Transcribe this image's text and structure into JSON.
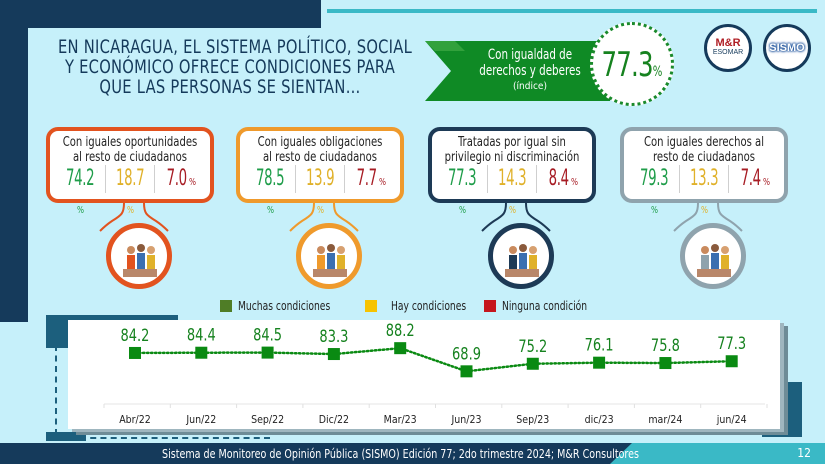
{
  "title": {
    "lines": [
      "EN NICARAGUA, EL SISTEMA POLÍTICO, SOCIAL",
      "Y ECONÓMICO OFRECE CONDICIONES PARA",
      "QUE LAS PERSONAS SE SIENTAN…"
    ]
  },
  "index": {
    "label_line1": "Con igualdad de",
    "label_line2": "derechos y deberes",
    "label_line3": "(índice)",
    "value": "77.3",
    "unit": "%"
  },
  "logos": {
    "mr_text": "M&R",
    "mr_sub": "ESOMAR",
    "sismo_text": "SISMO"
  },
  "colors": {
    "green": "#1f9d4a",
    "yellow": "#e0b12a",
    "red": "#a71c24",
    "navy": "#153a5b",
    "teal": "#3ab9c6"
  },
  "cards": [
    {
      "line1": "Con iguales oportunidades",
      "line2": "al resto de ciudadanos",
      "muchas": "74.2",
      "hay": "18.7",
      "ninguna": "7.0",
      "unit": "%",
      "border": "#e2531f",
      "icon": "people-on-podiums-icon"
    },
    {
      "line1": "Con iguales obligaciones",
      "line2": "al resto de ciudadanos",
      "muchas": "78.5",
      "hay": "13.9",
      "ninguna": "7.7",
      "unit": "%",
      "border": "#ef9a2c",
      "icon": "balance-scale-icon"
    },
    {
      "line1": "Tratadas por igual sin",
      "line2": "privilegio ni discriminación",
      "muchas": "77.3",
      "hay": "14.3",
      "ninguna": "8.4",
      "unit": "%",
      "border": "#1d3a56",
      "icon": "diverse-crowd-icon"
    },
    {
      "line1": "Con iguales derechos al",
      "line2": "resto de ciudadanos",
      "muchas": "79.3",
      "hay": "13.3",
      "ninguna": "7.4",
      "unit": "%",
      "border": "#8fa3ad",
      "icon": "helping-climb-icon"
    }
  ],
  "legend": [
    {
      "label": "Muchas condiciones",
      "color": "#4f7d26"
    },
    {
      "label": "Hay condiciones",
      "color": "#f7c300"
    },
    {
      "label": "Ninguna condición",
      "color": "#c5161d"
    }
  ],
  "chart_data": {
    "type": "line",
    "title": "",
    "xlabel": "",
    "ylabel": "",
    "categories": [
      "Abr/22",
      "Jun/22",
      "Sep/22",
      "Dic/22",
      "Mar/23",
      "Jun/23",
      "Sep/23",
      "dic/23",
      "mar/24",
      "jun/24"
    ],
    "series": [
      {
        "name": "Con igualdad de derechos y deberes (índice)",
        "values": [
          84.2,
          84.4,
          84.5,
          83.3,
          88.2,
          68.9,
          75.2,
          76.1,
          75.8,
          77.3
        ],
        "color": "#0a8a12"
      }
    ],
    "ylim": [
      0,
      100
    ],
    "grid": false,
    "data_labels": true
  },
  "footer": {
    "text": "Sistema de Monitoreo de Opinión Pública (SISMO) Edición 77; 2do trimestre 2024; M&R Consultores",
    "page": "12"
  }
}
